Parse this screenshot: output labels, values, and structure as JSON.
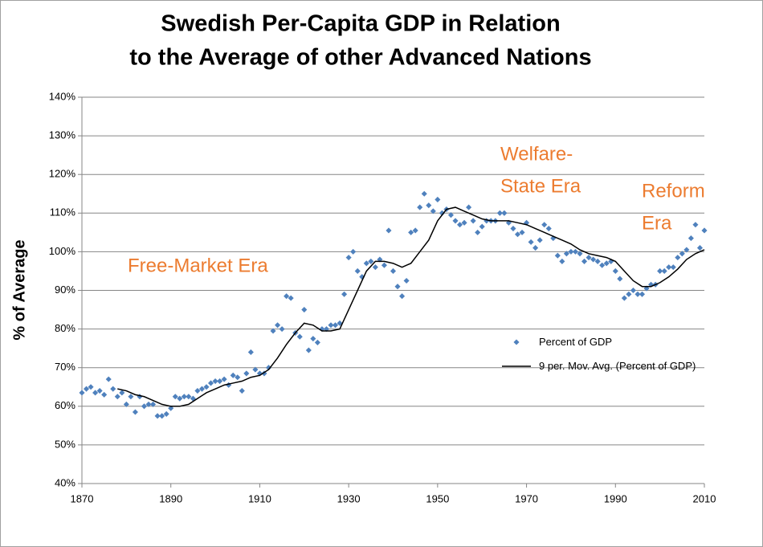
{
  "chart_data": {
    "type": "scatter-line",
    "title": [
      "Swedish Per-Capita GDP in Relation",
      "to the Average of other Advanced Nations"
    ],
    "y_label": "% of Average",
    "xlim": [
      1870,
      2010
    ],
    "xticks": [
      1870,
      1890,
      1910,
      1930,
      1950,
      1970,
      1990,
      2010
    ],
    "ylim": [
      40,
      140
    ],
    "yticks": [
      {
        "value": 40,
        "label": "40%"
      },
      {
        "value": 50,
        "label": "50%"
      },
      {
        "value": 60,
        "label": "60%"
      },
      {
        "value": 70,
        "label": "70%"
      },
      {
        "value": 80,
        "label": "80%"
      },
      {
        "value": 90,
        "label": "90%"
      },
      {
        "value": 100,
        "label": "100%"
      },
      {
        "value": 110,
        "label": "110%"
      },
      {
        "value": 120,
        "label": "120%"
      },
      {
        "value": 130,
        "label": "130%"
      },
      {
        "value": 140,
        "label": "140%"
      }
    ],
    "grid": true,
    "series": [
      {
        "name": "Percent of GDP",
        "kind": "scatter",
        "color": "#4f81bd",
        "x": [
          1870,
          1871,
          1872,
          1873,
          1874,
          1875,
          1876,
          1877,
          1878,
          1879,
          1880,
          1881,
          1882,
          1883,
          1884,
          1885,
          1886,
          1887,
          1888,
          1889,
          1890,
          1891,
          1892,
          1893,
          1894,
          1895,
          1896,
          1897,
          1898,
          1899,
          1900,
          1901,
          1902,
          1903,
          1904,
          1905,
          1906,
          1907,
          1908,
          1909,
          1910,
          1911,
          1912,
          1913,
          1914,
          1915,
          1916,
          1917,
          1918,
          1919,
          1920,
          1921,
          1922,
          1923,
          1924,
          1925,
          1926,
          1927,
          1928,
          1929,
          1930,
          1931,
          1932,
          1933,
          1934,
          1935,
          1936,
          1937,
          1938,
          1939,
          1940,
          1941,
          1942,
          1943,
          1944,
          1945,
          1946,
          1947,
          1948,
          1949,
          1950,
          1951,
          1952,
          1953,
          1954,
          1955,
          1956,
          1957,
          1958,
          1959,
          1960,
          1961,
          1962,
          1963,
          1964,
          1965,
          1966,
          1967,
          1968,
          1969,
          1970,
          1971,
          1972,
          1973,
          1974,
          1975,
          1976,
          1977,
          1978,
          1979,
          1980,
          1981,
          1982,
          1983,
          1984,
          1985,
          1986,
          1987,
          1988,
          1989,
          1990,
          1991,
          1992,
          1993,
          1994,
          1995,
          1996,
          1997,
          1998,
          1999,
          2000,
          2001,
          2002,
          2003,
          2004,
          2005,
          2006,
          2007,
          2008,
          2009,
          2010
        ],
        "values": [
          63.5,
          64.5,
          65,
          63.5,
          64,
          63,
          67,
          64.5,
          62.5,
          63.5,
          60.5,
          62.5,
          58.5,
          62.5,
          60,
          60.5,
          60.5,
          57.5,
          57.5,
          58,
          59.5,
          62.5,
          62,
          62.5,
          62.5,
          62,
          64,
          64.5,
          65,
          66,
          66.5,
          66.5,
          67,
          65.5,
          68,
          67.5,
          64,
          68.5,
          74,
          69.5,
          68.5,
          68.5,
          70,
          79.5,
          81,
          80,
          88.5,
          88,
          79,
          78,
          85,
          74.5,
          77.5,
          76.5,
          80,
          80,
          81,
          81,
          81.5,
          89,
          98.5,
          100,
          95,
          93.5,
          97,
          97.5,
          96,
          98,
          96.5,
          105.5,
          95,
          91,
          88.5,
          92.5,
          105,
          105.5,
          111.5,
          115,
          112,
          110.5,
          113.5,
          110,
          111,
          109.5,
          108,
          107,
          107.5,
          111.5,
          108,
          105,
          106.5,
          108,
          108,
          108,
          110,
          110,
          107.5,
          106,
          104.5,
          105,
          107.5,
          102.5,
          101,
          103,
          107,
          106,
          103.5,
          99,
          97.5,
          99.5,
          100,
          100,
          99.5,
          97.5,
          98.5,
          98,
          97.5,
          96.5,
          97,
          97.5,
          95,
          93,
          88,
          89,
          90,
          89,
          89,
          90.5,
          91.5,
          91.5,
          95,
          95,
          96,
          96,
          98.5,
          99.5,
          100.5,
          103.5,
          107,
          101,
          105.5
        ]
      },
      {
        "name": "9 per. Mov. Avg. (Percent of GDP)",
        "kind": "line",
        "color": "#000000",
        "x": [
          1878,
          1880,
          1882,
          1884,
          1886,
          1888,
          1890,
          1892,
          1894,
          1896,
          1898,
          1900,
          1902,
          1904,
          1906,
          1908,
          1910,
          1912,
          1914,
          1916,
          1918,
          1920,
          1922,
          1924,
          1926,
          1928,
          1930,
          1932,
          1934,
          1936,
          1938,
          1940,
          1942,
          1944,
          1946,
          1948,
          1950,
          1952,
          1954,
          1956,
          1958,
          1960,
          1962,
          1964,
          1966,
          1968,
          1970,
          1972,
          1974,
          1976,
          1978,
          1980,
          1982,
          1984,
          1986,
          1988,
          1990,
          1992,
          1994,
          1996,
          1998,
          2000,
          2002,
          2004,
          2006,
          2008,
          2010
        ],
        "values": [
          64.5,
          64,
          63,
          62.5,
          61.5,
          60.5,
          60,
          60,
          60.5,
          62,
          63.5,
          64.5,
          65.5,
          66,
          66.5,
          67.5,
          68,
          69.5,
          72.5,
          76,
          79,
          81.5,
          81,
          79.5,
          79.5,
          80,
          85,
          90,
          95,
          97.5,
          97.5,
          97,
          96,
          97,
          100,
          103,
          108,
          111,
          111.5,
          110.5,
          109.5,
          108.5,
          108,
          108,
          108,
          107.5,
          107,
          106,
          105,
          104,
          103,
          102,
          100.5,
          99.5,
          99,
          98.5,
          97.5,
          95,
          92.5,
          91,
          91,
          92,
          93.5,
          95.5,
          98,
          99.5,
          100.5
        ]
      }
    ],
    "annotations": [
      [
        "Free-Market Era"
      ],
      [
        "Welfare-",
        "State Era"
      ],
      [
        "Reform",
        "Era"
      ]
    ]
  }
}
